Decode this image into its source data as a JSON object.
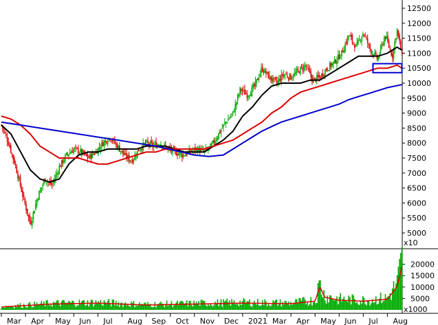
{
  "chart_data": [
    {
      "type": "line",
      "subtype": "candlestick",
      "panel": "price",
      "title": "",
      "multiplier_label": "x10",
      "ylim": [
        5000,
        12500
      ],
      "y_ticks": [
        "12500",
        "12000",
        "11500",
        "11000",
        "10500",
        "10000",
        "9500",
        "9000",
        "8500",
        "8000",
        "7500",
        "7000",
        "6500",
        "6000",
        "5500",
        "5000"
      ],
      "x_ticks": [
        "Mar",
        "Apr",
        "May",
        "Jun",
        "Jul",
        "Aug",
        "Sep",
        "Oct",
        "Nov",
        "Dec",
        "2021",
        "Mar",
        "Apr",
        "May",
        "Jun",
        "Jul",
        "Aug"
      ],
      "x_range": [
        "2020-03",
        "2021-08"
      ],
      "colors": {
        "up": "#00aa00",
        "down": "#dd0000",
        "ma_short": "#000000",
        "ma_mid": "#dd0000",
        "ma_long": "#0000cc",
        "highlight_box": "#0000cc"
      },
      "close_path": [
        [
          0,
          8600
        ],
        [
          0.3,
          8000
        ],
        [
          0.6,
          7200
        ],
        [
          0.9,
          6200
        ],
        [
          1.2,
          5300
        ],
        [
          1.5,
          6200
        ],
        [
          1.8,
          6800
        ],
        [
          2.1,
          6600
        ],
        [
          2.4,
          7200
        ],
        [
          2.7,
          7600
        ],
        [
          3.0,
          7800
        ],
        [
          3.3,
          7700
        ],
        [
          3.6,
          7500
        ],
        [
          3.9,
          7700
        ],
        [
          4.2,
          8000
        ],
        [
          4.5,
          8200
        ],
        [
          4.8,
          7900
        ],
        [
          5.1,
          7600
        ],
        [
          5.4,
          7400
        ],
        [
          5.7,
          7800
        ],
        [
          6.0,
          8000
        ],
        [
          6.3,
          7900
        ],
        [
          6.6,
          8000
        ],
        [
          6.9,
          7800
        ],
        [
          7.2,
          7700
        ],
        [
          7.5,
          7600
        ],
        [
          7.8,
          7700
        ],
        [
          8.1,
          7800
        ],
        [
          8.4,
          7700
        ],
        [
          8.7,
          7900
        ],
        [
          9.0,
          8300
        ],
        [
          9.3,
          8700
        ],
        [
          9.6,
          9000
        ],
        [
          9.9,
          9800
        ],
        [
          10.2,
          9600
        ],
        [
          10.5,
          9900
        ],
        [
          10.8,
          10500
        ],
        [
          11.1,
          10200
        ],
        [
          11.4,
          10000
        ],
        [
          11.7,
          10300
        ],
        [
          12.0,
          10200
        ],
        [
          12.3,
          10400
        ],
        [
          12.6,
          10600
        ],
        [
          12.9,
          10100
        ],
        [
          13.2,
          10200
        ],
        [
          13.5,
          10500
        ],
        [
          13.8,
          10700
        ],
        [
          14.1,
          11000
        ],
        [
          14.4,
          11600
        ],
        [
          14.7,
          11200
        ],
        [
          15.0,
          11700
        ],
        [
          15.3,
          11100
        ],
        [
          15.6,
          10800
        ],
        [
          15.9,
          11600
        ],
        [
          16.2,
          10900
        ],
        [
          16.4,
          11800
        ],
        [
          16.6,
          10900
        ]
      ],
      "series": [
        {
          "name": "",
          "color": "#000000",
          "points": [
            [
              0,
              8600
            ],
            [
              0.4,
              8300
            ],
            [
              0.8,
              7700
            ],
            [
              1.2,
              7100
            ],
            [
              1.6,
              6800
            ],
            [
              2.0,
              6700
            ],
            [
              2.4,
              6800
            ],
            [
              2.8,
              7300
            ],
            [
              3.2,
              7600
            ],
            [
              3.6,
              7700
            ],
            [
              4.0,
              7700
            ],
            [
              4.4,
              7800
            ],
            [
              4.8,
              7800
            ],
            [
              5.2,
              7800
            ],
            [
              5.6,
              7800
            ],
            [
              6.0,
              7900
            ],
            [
              6.4,
              7900
            ],
            [
              6.8,
              7900
            ],
            [
              7.2,
              7800
            ],
            [
              7.6,
              7700
            ],
            [
              8.0,
              7700
            ],
            [
              8.4,
              7700
            ],
            [
              8.8,
              7900
            ],
            [
              9.2,
              8100
            ],
            [
              9.6,
              8400
            ],
            [
              10.0,
              8900
            ],
            [
              10.4,
              9200
            ],
            [
              10.8,
              9600
            ],
            [
              11.2,
              9900
            ],
            [
              11.6,
              10000
            ],
            [
              12.0,
              10000
            ],
            [
              12.4,
              10000
            ],
            [
              12.8,
              10100
            ],
            [
              13.2,
              10100
            ],
            [
              13.6,
              10300
            ],
            [
              14.0,
              10500
            ],
            [
              14.4,
              10700
            ],
            [
              14.8,
              10900
            ],
            [
              15.2,
              10900
            ],
            [
              15.6,
              10900
            ],
            [
              16.0,
              11000
            ],
            [
              16.4,
              11200
            ],
            [
              16.6,
              11100
            ]
          ]
        },
        {
          "name": "",
          "color": "#dd0000",
          "points": [
            [
              0,
              8900
            ],
            [
              0.4,
              8800
            ],
            [
              0.8,
              8600
            ],
            [
              1.2,
              8300
            ],
            [
              1.6,
              7900
            ],
            [
              2.0,
              7700
            ],
            [
              2.4,
              7500
            ],
            [
              2.8,
              7500
            ],
            [
              3.2,
              7500
            ],
            [
              3.6,
              7400
            ],
            [
              4.0,
              7300
            ],
            [
              4.4,
              7300
            ],
            [
              4.8,
              7400
            ],
            [
              5.2,
              7500
            ],
            [
              5.6,
              7600
            ],
            [
              6.0,
              7700
            ],
            [
              6.4,
              7700
            ],
            [
              6.8,
              7800
            ],
            [
              7.2,
              7800
            ],
            [
              7.6,
              7800
            ],
            [
              8.0,
              7800
            ],
            [
              8.4,
              7800
            ],
            [
              8.8,
              7900
            ],
            [
              9.2,
              8000
            ],
            [
              9.6,
              8100
            ],
            [
              10.0,
              8300
            ],
            [
              10.4,
              8500
            ],
            [
              10.8,
              8700
            ],
            [
              11.2,
              9000
            ],
            [
              11.6,
              9200
            ],
            [
              12.0,
              9500
            ],
            [
              12.4,
              9700
            ],
            [
              12.8,
              9800
            ],
            [
              13.2,
              9900
            ],
            [
              13.6,
              10000
            ],
            [
              14.0,
              10100
            ],
            [
              14.4,
              10200
            ],
            [
              14.8,
              10300
            ],
            [
              15.2,
              10400
            ],
            [
              15.6,
              10500
            ],
            [
              16.0,
              10500
            ],
            [
              16.4,
              10600
            ],
            [
              16.6,
              10500
            ]
          ]
        },
        {
          "name": "",
          "color": "#0000cc",
          "points": [
            [
              0,
              8700
            ],
            [
              0.8,
              8600
            ],
            [
              1.6,
              8500
            ],
            [
              2.4,
              8400
            ],
            [
              3.2,
              8300
            ],
            [
              4.0,
              8200
            ],
            [
              4.8,
              8100
            ],
            [
              5.6,
              8000
            ],
            [
              6.4,
              7900
            ],
            [
              7.2,
              7750
            ],
            [
              8.0,
              7600
            ],
            [
              8.6,
              7550
            ],
            [
              9.2,
              7600
            ],
            [
              9.6,
              7800
            ],
            [
              10.0,
              8000
            ],
            [
              10.4,
              8200
            ],
            [
              10.8,
              8400
            ],
            [
              11.2,
              8550
            ],
            [
              11.6,
              8700
            ],
            [
              12.0,
              8800
            ],
            [
              12.4,
              8900
            ],
            [
              12.8,
              9000
            ],
            [
              13.2,
              9100
            ],
            [
              13.6,
              9200
            ],
            [
              14.0,
              9300
            ],
            [
              14.4,
              9450
            ],
            [
              14.8,
              9550
            ],
            [
              15.2,
              9650
            ],
            [
              15.6,
              9750
            ],
            [
              16.0,
              9850
            ],
            [
              16.6,
              9950
            ]
          ]
        }
      ],
      "highlight_box": {
        "x0": 15.4,
        "x1": 16.6,
        "y0": 10350,
        "y1": 10650
      },
      "grid": false,
      "legend": "none"
    },
    {
      "type": "bar",
      "panel": "volume",
      "title": "",
      "multiplier_label": "x1000",
      "ylim": [
        0,
        25000
      ],
      "y_ticks": [
        "20000",
        "15000",
        "10000",
        "5000"
      ],
      "volume_levels": [
        [
          0,
          1500
        ],
        [
          2.0,
          3000
        ],
        [
          4.0,
          3500
        ],
        [
          6.0,
          2500
        ],
        [
          8.0,
          3000
        ],
        [
          10.0,
          3500
        ],
        [
          12.0,
          3200
        ],
        [
          13.0,
          4500
        ],
        [
          13.2,
          12000
        ],
        [
          13.4,
          6500
        ],
        [
          14.0,
          5000
        ],
        [
          15.0,
          4500
        ],
        [
          16.0,
          5500
        ],
        [
          16.4,
          12000
        ],
        [
          16.6,
          22000
        ]
      ],
      "volume_ma_color": "#dd0000",
      "bar_color": "#00aa00"
    }
  ]
}
